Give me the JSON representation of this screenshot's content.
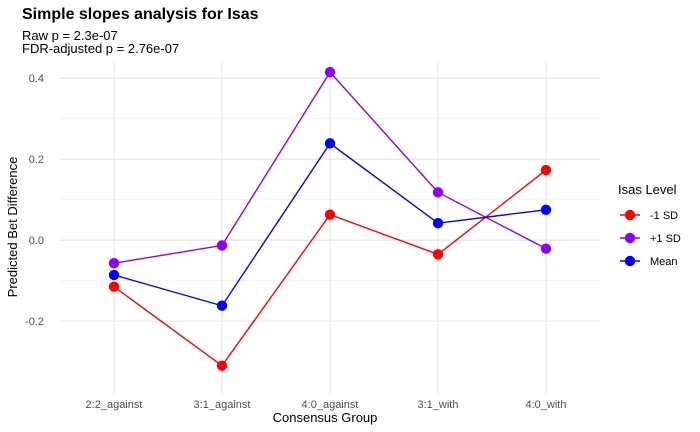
{
  "chart_data": {
    "type": "line",
    "title": "Simple slopes analysis for Isas",
    "subtitle_lines": [
      "Raw p = 2.3e-07",
      "FDR-adjusted p = 2.76e-07"
    ],
    "xlabel": "Consensus Group",
    "ylabel": "Predicted Bet Difference",
    "categories": [
      "2:2_against",
      "3:1_against",
      "4:0_against",
      "3:1_with",
      "4:0_with"
    ],
    "ylim": [
      -0.38,
      0.44
    ],
    "yticks": [
      -0.2,
      0.0,
      0.2,
      0.4
    ],
    "ytick_labels": [
      "-0.2",
      "0.0",
      "0.2",
      "0.4"
    ],
    "grid": true,
    "legend": {
      "title": "Isas Level",
      "position": "right"
    },
    "series": [
      {
        "name": "-1 SD",
        "color": "#ff0000",
        "values": [
          -0.115,
          -0.31,
          0.063,
          -0.035,
          0.173
        ]
      },
      {
        "name": "+1 SD",
        "color": "#8b00ff",
        "values": [
          -0.057,
          -0.013,
          0.415,
          0.118,
          -0.021
        ]
      },
      {
        "name": "Mean",
        "color": "#0000ff",
        "values": [
          -0.086,
          -0.162,
          0.239,
          0.042,
          0.075
        ]
      }
    ]
  }
}
